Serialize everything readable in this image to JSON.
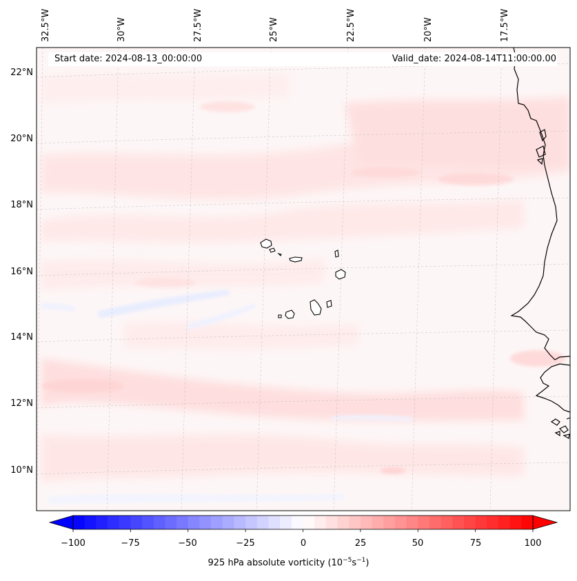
{
  "map": {
    "start_date": "Start date: 2024-08-13_00:00:00",
    "valid_date": "Valid_date: 2024-08-14T11:00:00.00",
    "longitude_labels": [
      "32.5°W",
      "30°W",
      "27.5°W",
      "25°W",
      "22.5°W",
      "20°W",
      "17.5°W"
    ],
    "latitude_labels": [
      "22°N",
      "20°N",
      "18°N",
      "16°N",
      "14°N",
      "12°N",
      "10°N"
    ],
    "islands": "Cape Verde",
    "coastline": "West Africa (Senegal, Gambia, Guinea-Bissau)"
  },
  "colorbar": {
    "ticks": [
      "−100",
      "−75",
      "−50",
      "−25",
      "0",
      "25",
      "50",
      "75",
      "100"
    ],
    "label_prefix": "925 hPa absolute vorticity (10",
    "label_exp1": "−5",
    "label_mid": "s",
    "label_exp2": "−1",
    "label_suffix": ")",
    "min": -100,
    "max": 100,
    "low_color": "#0000ff",
    "mid_color": "#ffffff",
    "high_color": "#ff0000"
  }
}
